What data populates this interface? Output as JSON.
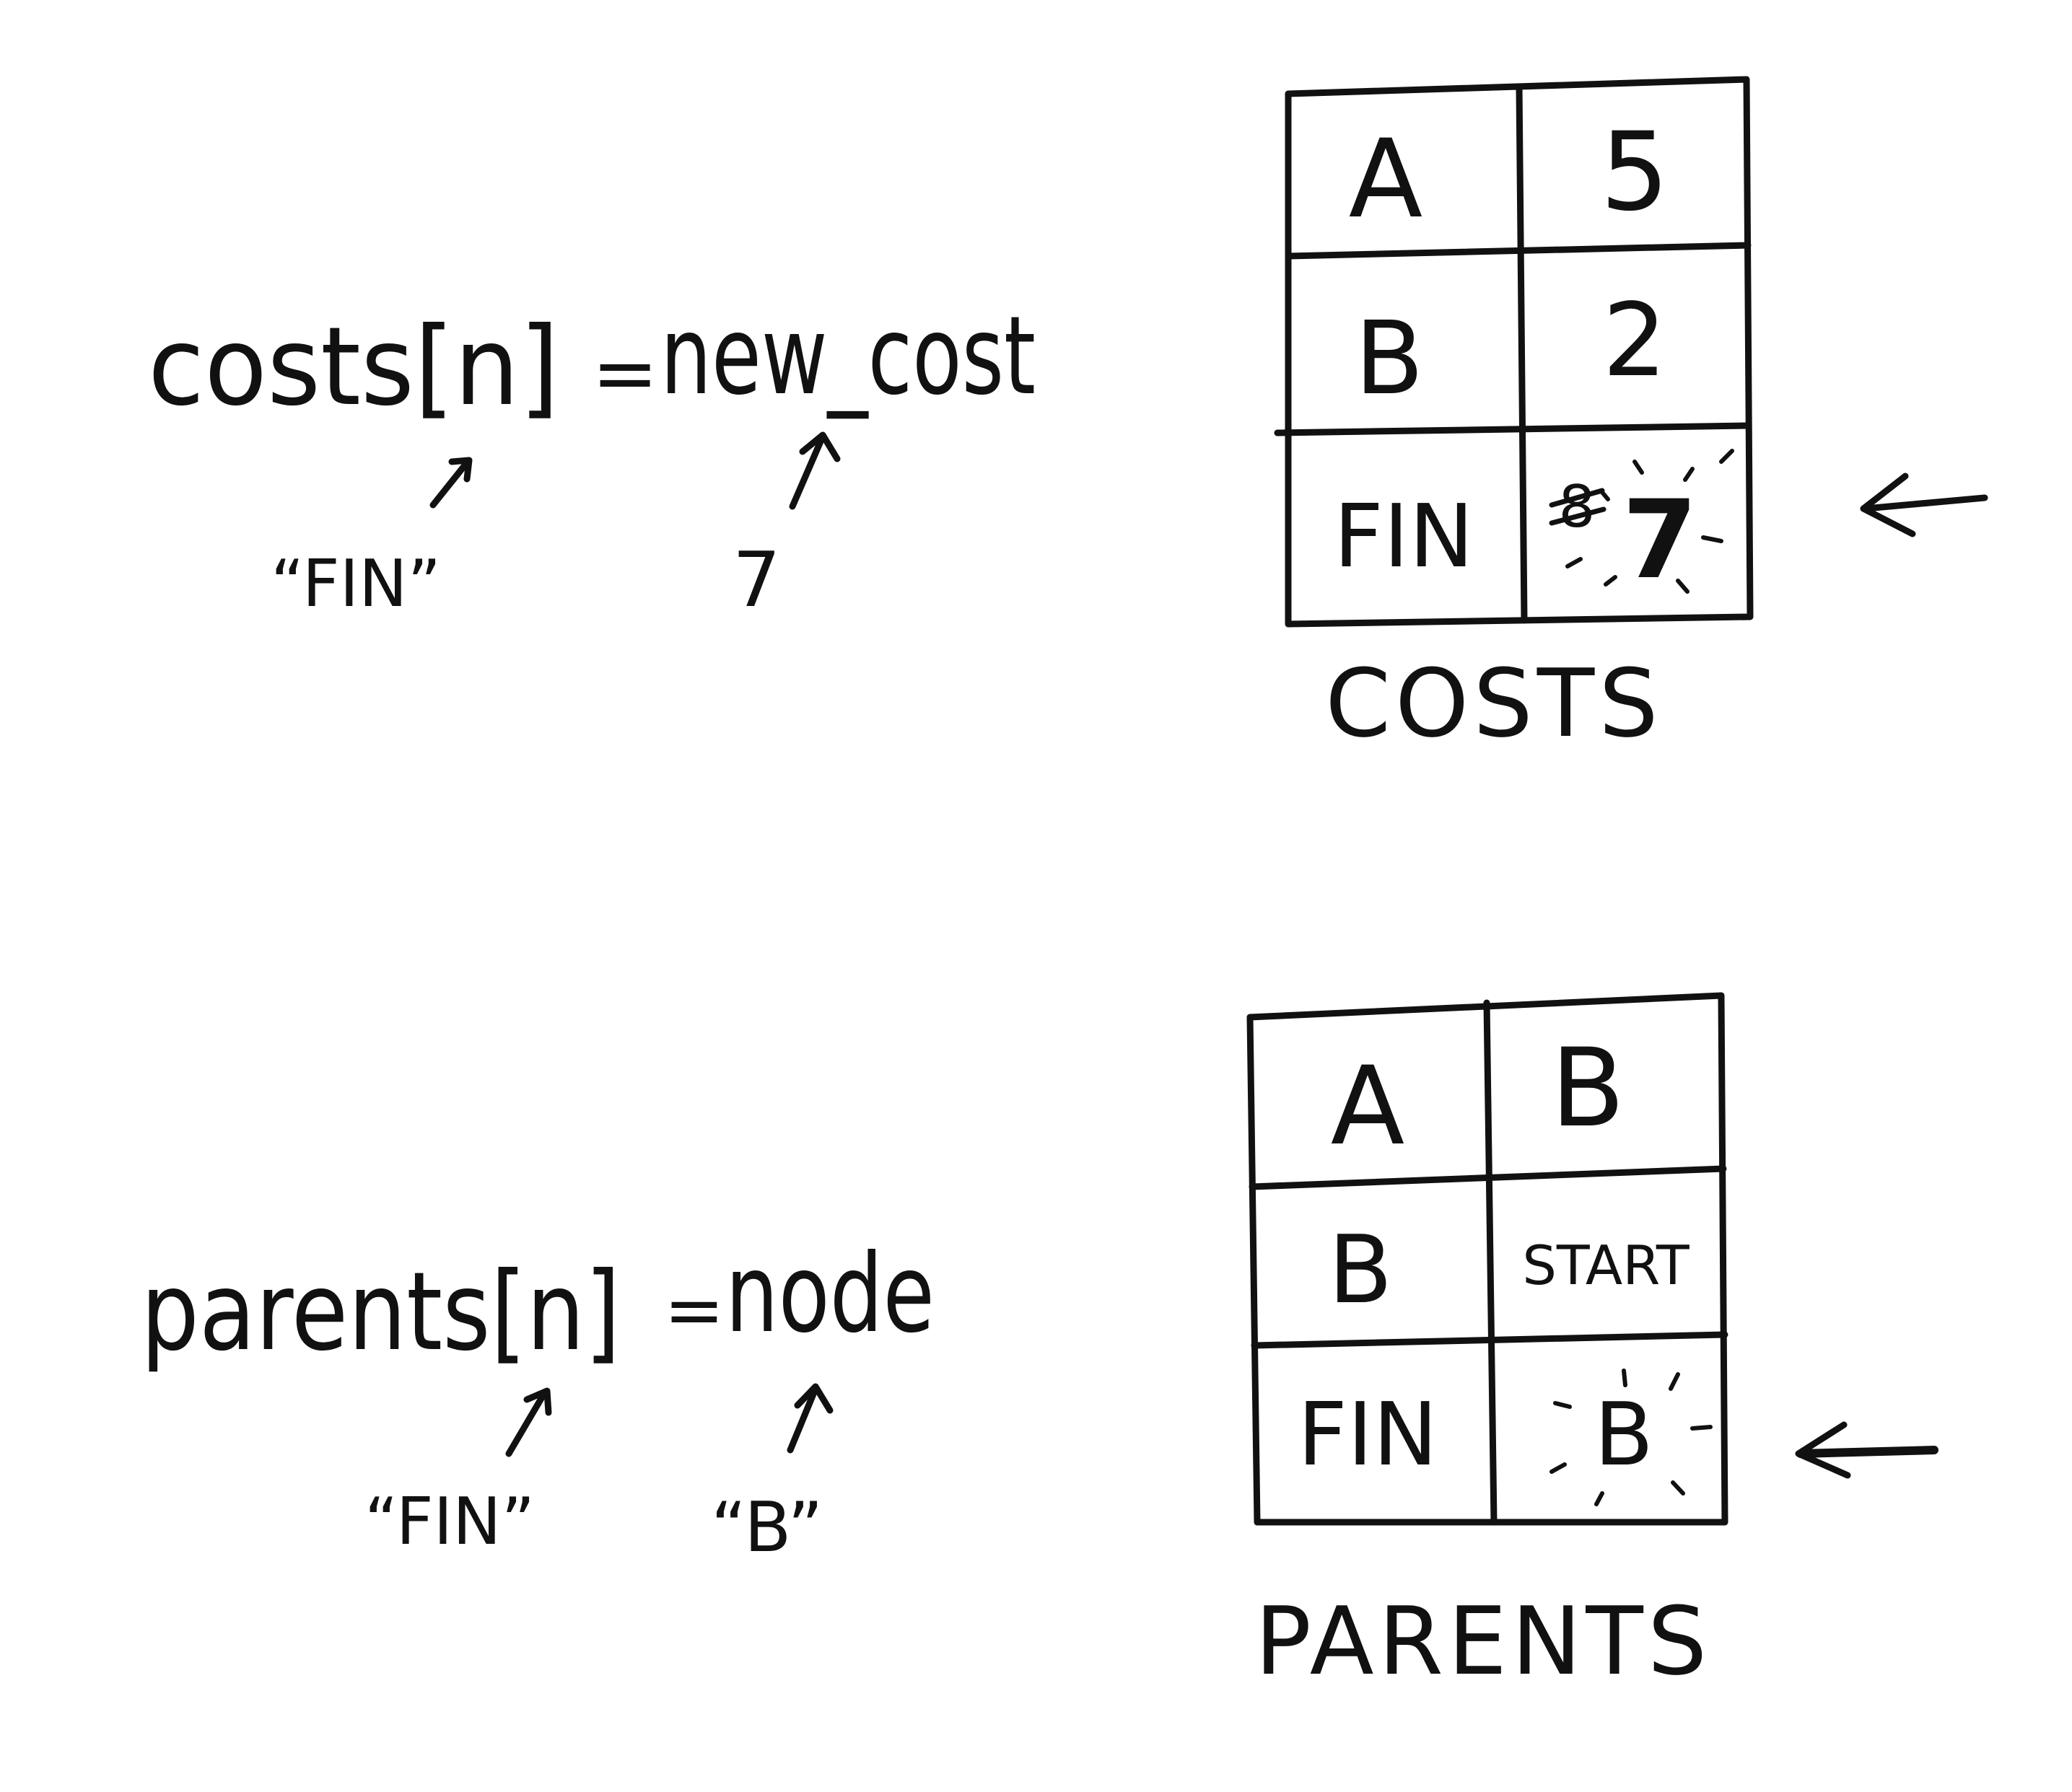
{
  "costs_section": {
    "assignment": {
      "lhs": "costs[n]",
      "equals": "=",
      "rhs": "new_cost",
      "key_annotation": "“FIN”",
      "value_annotation": "7"
    },
    "table": {
      "caption": "COSTS",
      "rows": [
        {
          "key": "A",
          "value": "5"
        },
        {
          "key": "B",
          "value": "2"
        },
        {
          "key": "FIN",
          "value": "7",
          "crossed_out": "8",
          "highlighted": true
        }
      ]
    }
  },
  "parents_section": {
    "assignment": {
      "lhs": "parents[n]",
      "equals": "=",
      "rhs": "node",
      "key_annotation": "“FIN”",
      "value_annotation": "“B”"
    },
    "table": {
      "caption": "PARENTS",
      "rows": [
        {
          "key": "A",
          "value": "B"
        },
        {
          "key": "B",
          "value": "START"
        },
        {
          "key": "FIN",
          "value": "B",
          "highlighted": true
        }
      ]
    }
  },
  "icons": {
    "pointer_arrows": "left-arrow-icon",
    "annotation_arrows": "up-arrow-icon"
  }
}
